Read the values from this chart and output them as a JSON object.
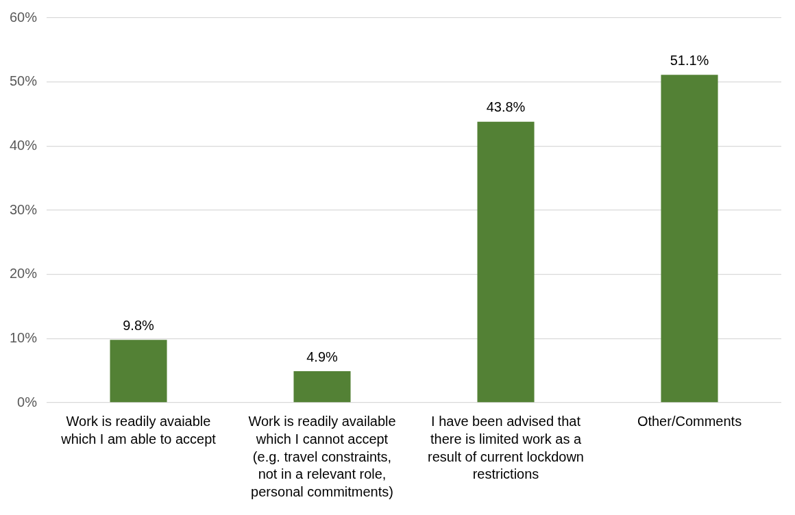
{
  "chart_data": {
    "type": "bar",
    "categories": [
      "Work is readily avaiable which I am able to accept",
      "Work is readily available which I cannot accept (e.g. travel constraints, not in a relevant role, personal commitments)",
      "I have been advised that there is limited work as a result of current lockdown restrictions",
      "Other/Comments"
    ],
    "values": [
      9.8,
      4.9,
      43.8,
      51.1
    ],
    "value_labels": [
      "9.8%",
      "4.9%",
      "43.8%",
      "51.1%"
    ],
    "color": "#538135",
    "ylim": [
      0,
      60
    ],
    "yticks": [
      {
        "value": 0,
        "label": "0%"
      },
      {
        "value": 10,
        "label": "10%"
      },
      {
        "value": 20,
        "label": "20%"
      },
      {
        "value": 30,
        "label": "30%"
      },
      {
        "value": 40,
        "label": "40%"
      },
      {
        "value": 50,
        "label": "50%"
      },
      {
        "value": 60,
        "label": "60%"
      }
    ],
    "grid": "y",
    "legend": false
  }
}
